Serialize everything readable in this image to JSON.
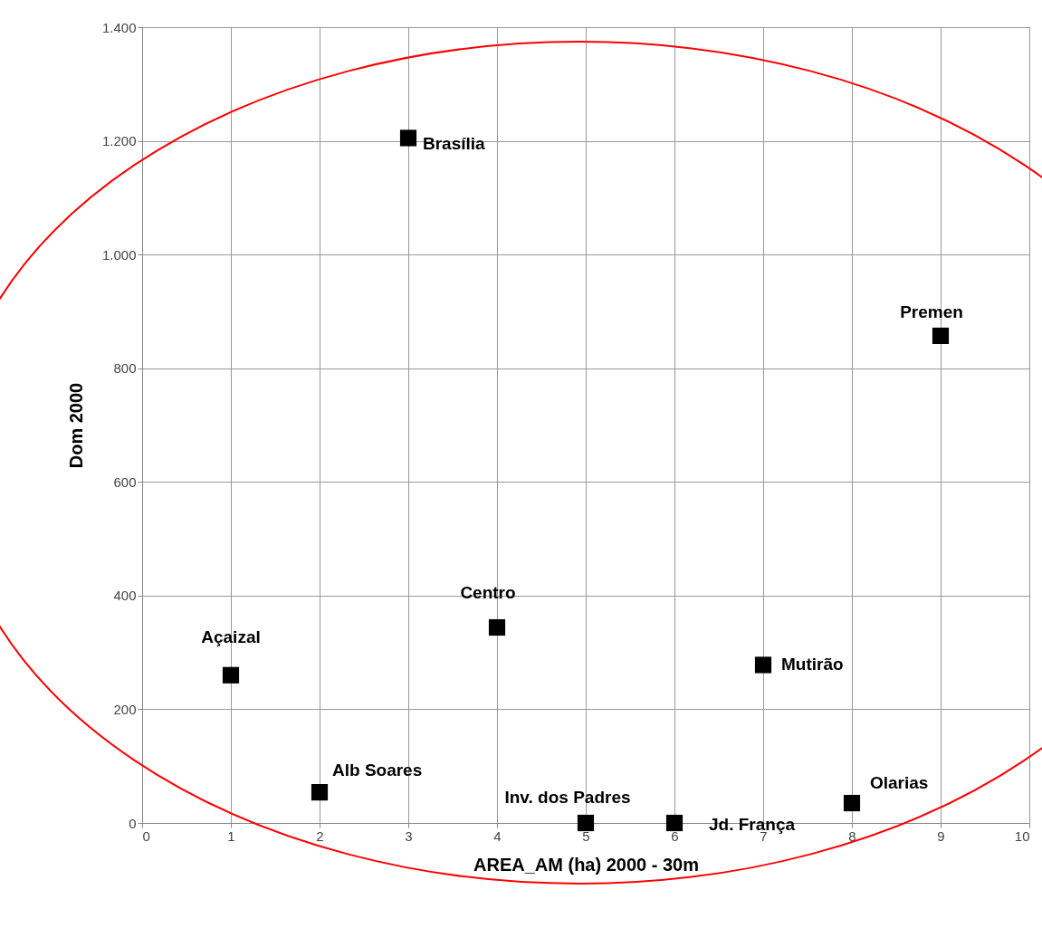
{
  "chart_data": {
    "type": "scatter",
    "xlabel": "AREA_AM (ha) 2000  - 30m",
    "ylabel": "Dom 2000",
    "x": [
      1,
      2,
      3,
      4,
      5,
      6,
      7,
      8,
      9
    ],
    "series": [
      {
        "color": "#000000",
        "values": [
          260,
          54,
          1205,
          344,
          0,
          0,
          278,
          35,
          857
        ]
      }
    ],
    "marker": "square",
    "xlim": [
      0,
      10
    ],
    "xticks": [
      0,
      1,
      2,
      3,
      4,
      5,
      6,
      7,
      8,
      9,
      10
    ],
    "ylim": [
      0,
      1400
    ],
    "yticks": [
      0,
      200,
      400,
      600,
      800,
      {
        "value": 1000,
        "label": "1.000"
      },
      {
        "value": 1200,
        "label": "1.200"
      },
      {
        "value": 1400,
        "label": "1.400"
      }
    ],
    "grid": true,
    "annotations": [
      {
        "text": "Açaizal",
        "x": 1,
        "y": 260
      },
      {
        "text": "Alb Soares",
        "x": 2,
        "y": 54
      },
      {
        "text": "Brasília",
        "x": 3,
        "y": 1205
      },
      {
        "text": "Centro",
        "x": 4,
        "y": 344
      },
      {
        "text": "Inv. dos Padres",
        "x": 5,
        "y": 0
      },
      {
        "text": "Jd. França",
        "x": 6,
        "y": 0
      },
      {
        "text": "Mutirão",
        "x": 7,
        "y": 278
      },
      {
        "text": "Olarias",
        "x": 8,
        "y": 35
      },
      {
        "text": "Premen",
        "x": 9,
        "y": 857
      }
    ]
  }
}
